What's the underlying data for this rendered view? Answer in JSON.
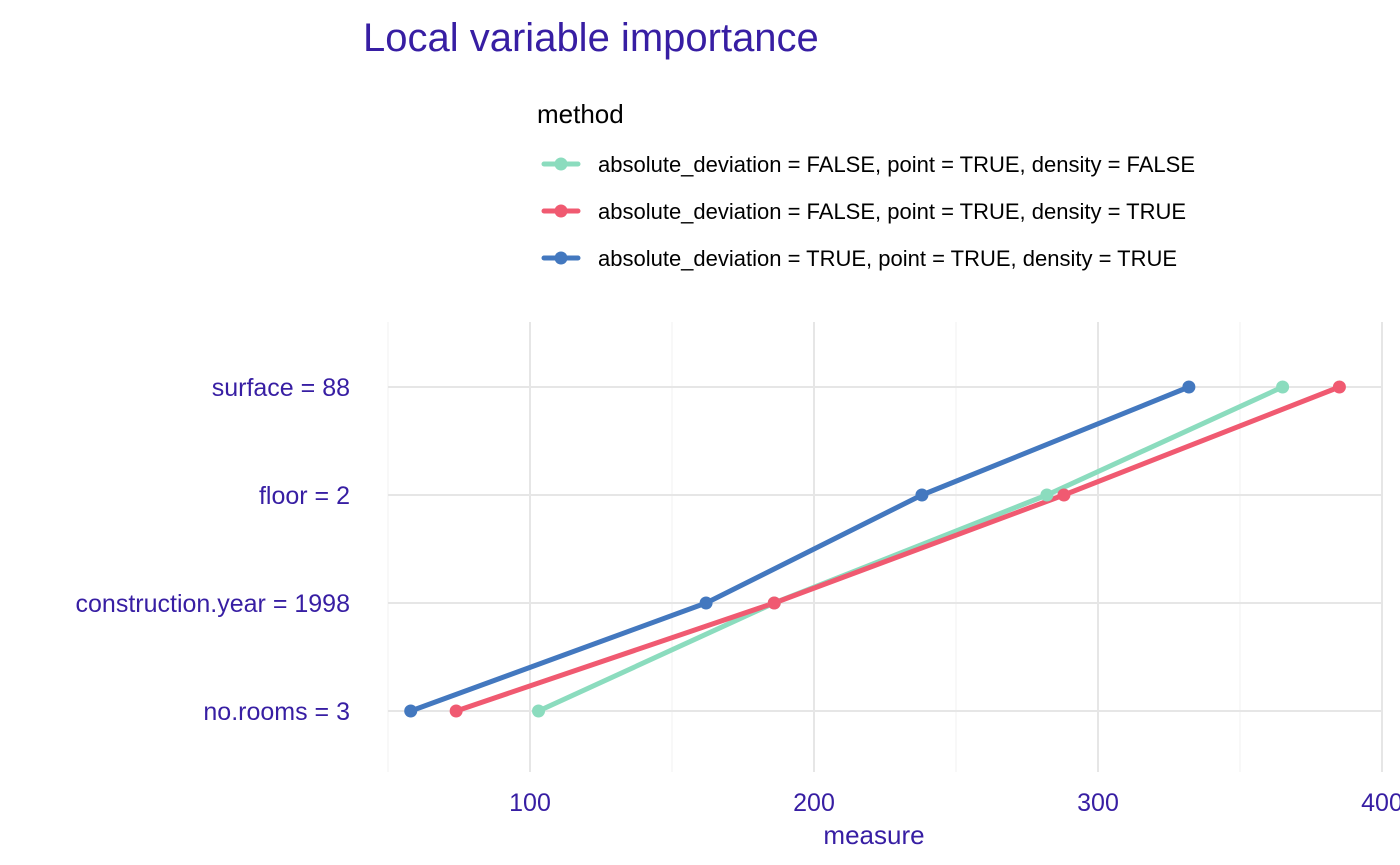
{
  "chart_data": {
    "type": "line",
    "title": "Local variable importance",
    "xlabel": "measure",
    "ylabel": "",
    "xlim": [
      50,
      400
    ],
    "x_ticks": [
      100,
      200,
      300,
      400
    ],
    "x_minor_ticks": [
      50,
      150,
      250,
      350
    ],
    "categories": [
      "no.rooms = 3",
      "construction.year = 1998",
      "floor = 2",
      "surface = 88"
    ],
    "legend": {
      "title": "method",
      "position": "top"
    },
    "series": [
      {
        "name": "absolute_deviation = FALSE, point = TRUE, density = FALSE",
        "color": "#8bdcbe",
        "values": [
          103,
          186,
          282,
          365
        ]
      },
      {
        "name": "absolute_deviation = FALSE, point = TRUE, density = TRUE",
        "color": "#f05a71",
        "values": [
          74,
          186,
          288,
          385
        ]
      },
      {
        "name": "absolute_deviation = TRUE, point = TRUE, density = TRUE",
        "color": "#4378bf",
        "values": [
          58,
          162,
          238,
          332
        ]
      }
    ]
  }
}
